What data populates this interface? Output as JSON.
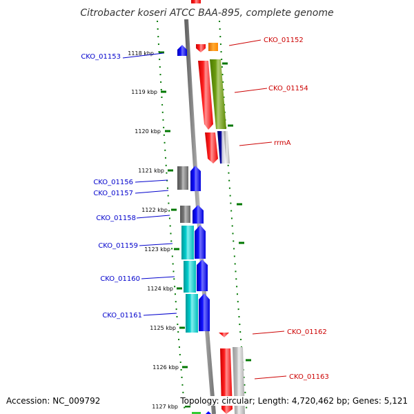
{
  "title": "Citrobacter koseri ATCC BAA-895, complete genome",
  "accession": "Accession: NC_009792",
  "summary": "Topology: circular; Length: 4,720,462 bp; Genes: 5,121",
  "kbp_labels": [
    "1118 kbp",
    "1119 kbp",
    "1120 kbp",
    "1121 kbp",
    "1122 kbp",
    "1123 kbp",
    "1124 kbp",
    "1125 kbp",
    "1126 kbp",
    "1127 kbp"
  ],
  "genes_left": [
    "CKO_01153",
    "CKO_01156",
    "CKO_01157",
    "CKO_01158",
    "CKO_01159",
    "CKO_01160",
    "CKO_01161"
  ],
  "genes_right": [
    "CKO_01152",
    "CKO_01154",
    "rrmA",
    "CKO_01162",
    "CKO_01163"
  ],
  "colors": {
    "forward_label": "#0000cc",
    "reverse_label": "#cc0000",
    "tick": "#007700",
    "backbone": "#888888",
    "red": "#ff0000",
    "blue": "#0000ff",
    "cyan": "#00cccc",
    "olive": "#669900",
    "orange": "#ff8800",
    "gray": "#777777",
    "lightgray": "#bbbbbb",
    "navy": "#000088",
    "green": "#33cc33"
  }
}
